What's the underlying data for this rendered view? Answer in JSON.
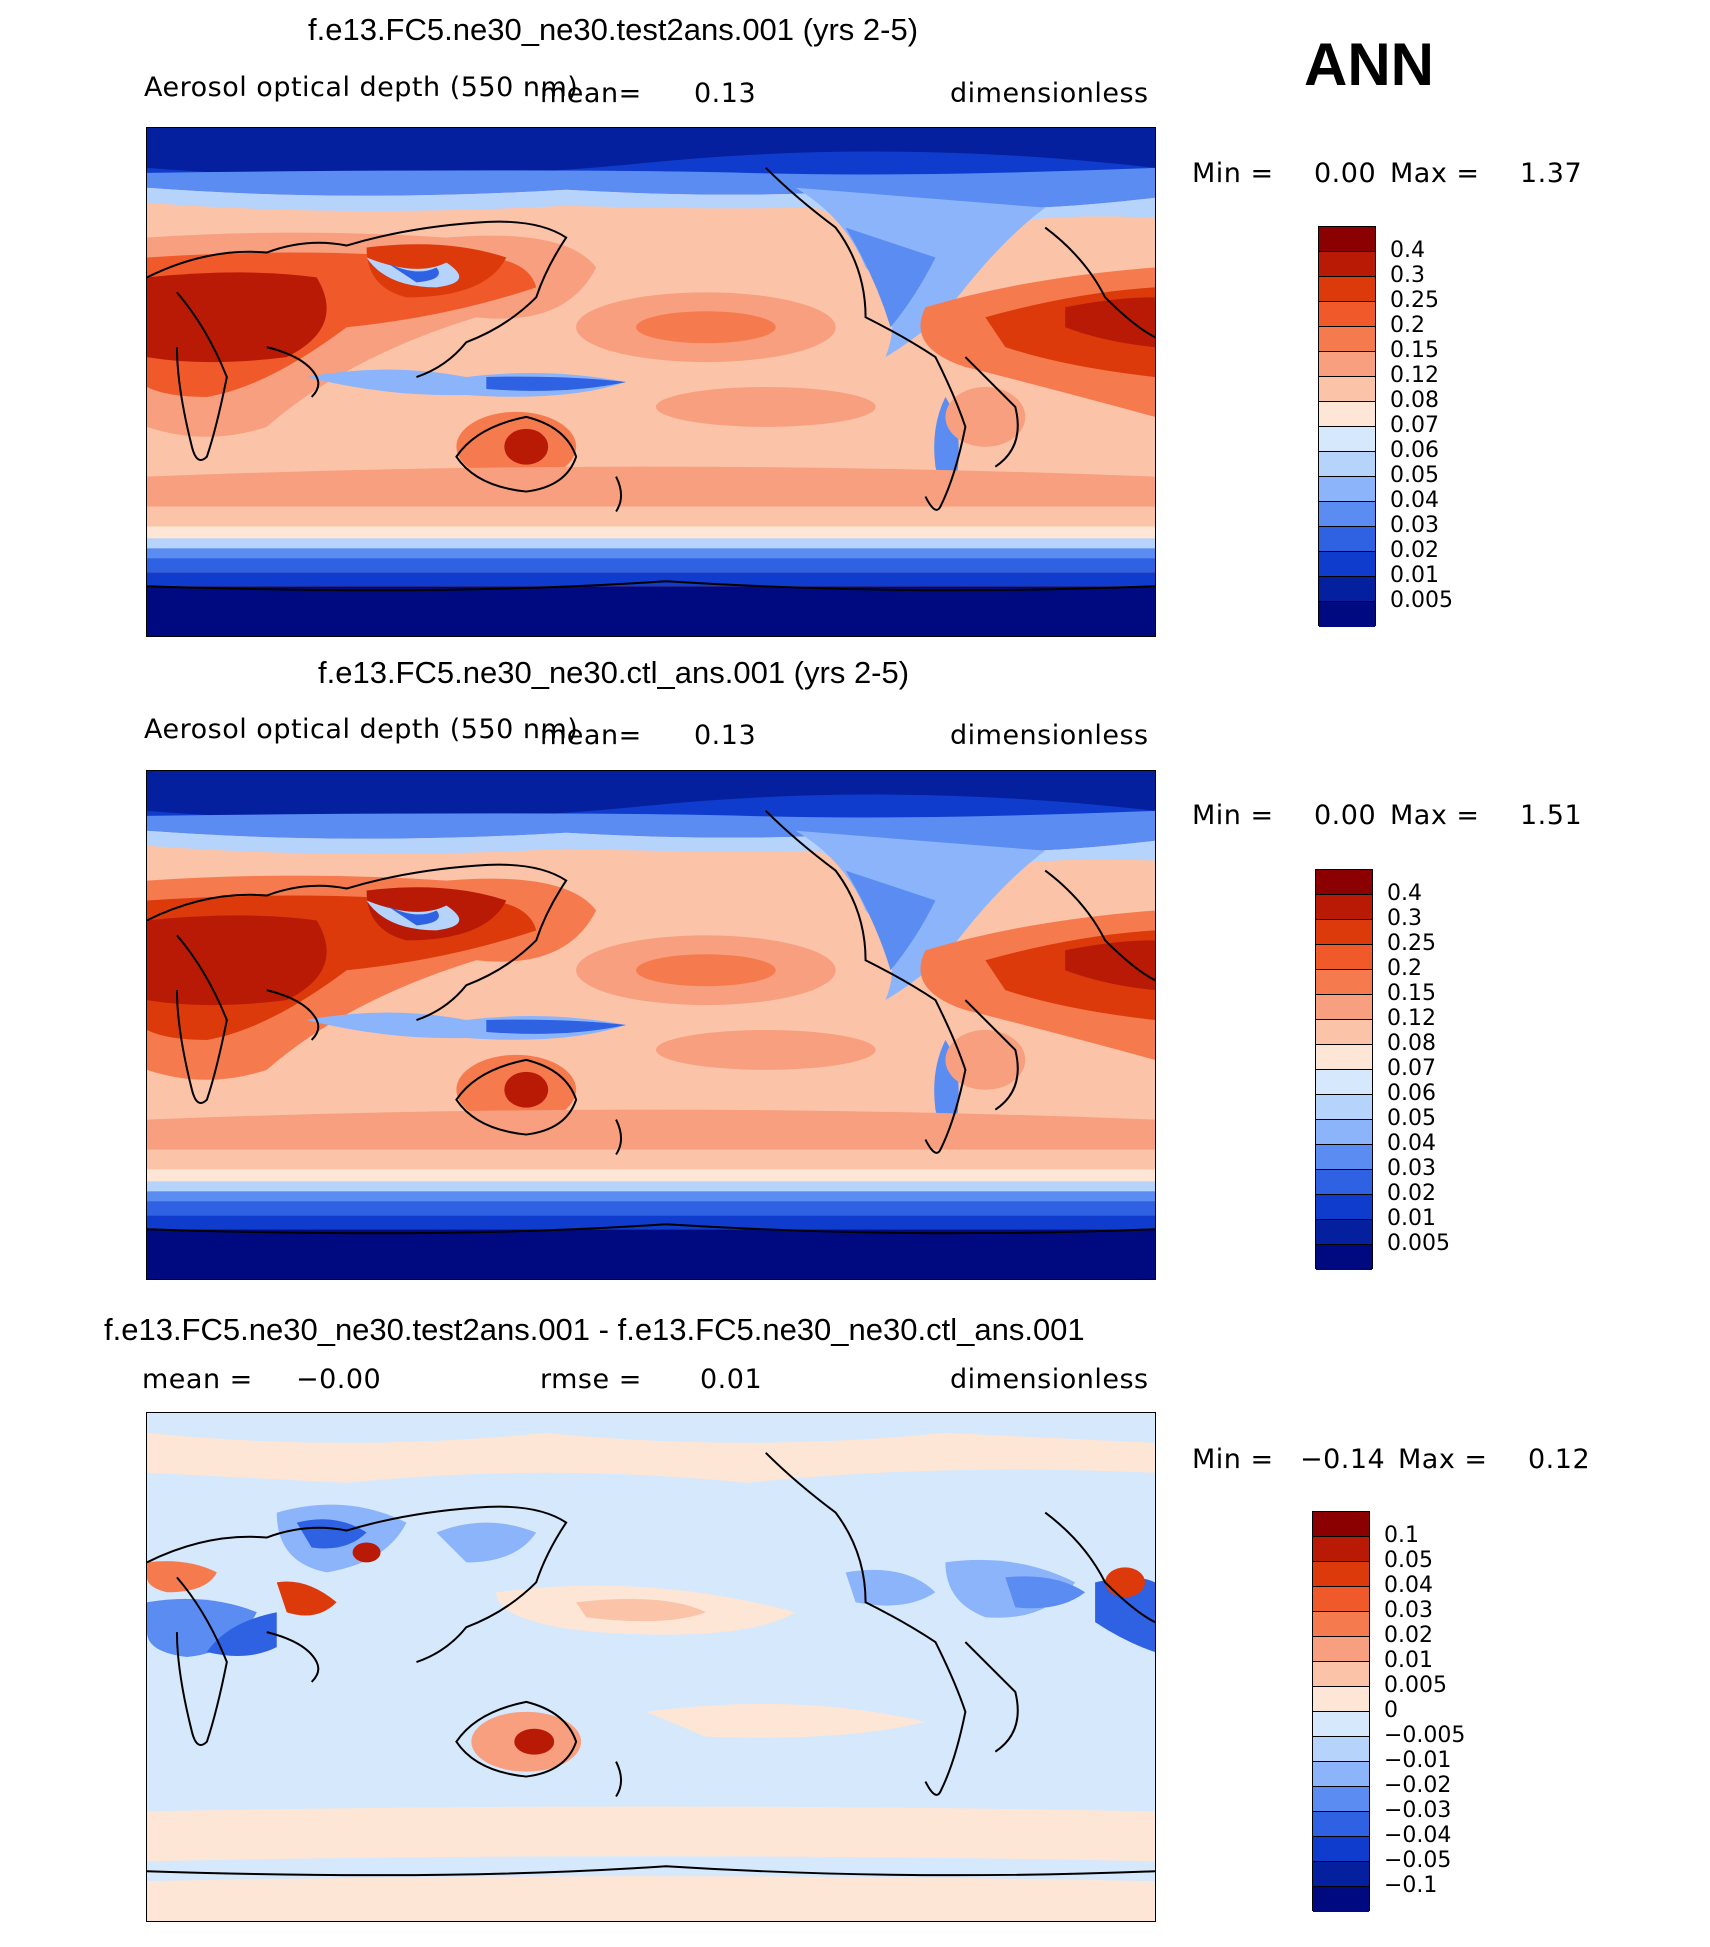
{
  "season": "ANN",
  "panels": [
    {
      "title": "f.e13.FC5.ne30_ne30.test2ans.001 (yrs 2-5)",
      "variable": "Aerosol optical depth (550 nm)",
      "mean_label": "mean=",
      "mean_value": "0.13",
      "units": "dimensionless",
      "min_label": "Min =",
      "min_value": "0.00",
      "max_label": "Max =",
      "max_value": "1.37",
      "colorbar_labels": [
        "0.4",
        "0.3",
        "0.25",
        "0.2",
        "0.15",
        "0.12",
        "0.08",
        "0.07",
        "0.06",
        "0.05",
        "0.04",
        "0.03",
        "0.02",
        "0.01",
        "0.005"
      ]
    },
    {
      "title": "f.e13.FC5.ne30_ne30.ctl_ans.001 (yrs 2-5)",
      "variable": "Aerosol optical depth (550 nm)",
      "mean_label": "mean=",
      "mean_value": "0.13",
      "units": "dimensionless",
      "min_label": "Min =",
      "min_value": "0.00",
      "max_label": "Max =",
      "max_value": "1.51",
      "colorbar_labels": [
        "0.4",
        "0.3",
        "0.25",
        "0.2",
        "0.15",
        "0.12",
        "0.08",
        "0.07",
        "0.06",
        "0.05",
        "0.04",
        "0.03",
        "0.02",
        "0.01",
        "0.005"
      ]
    },
    {
      "title": "f.e13.FC5.ne30_ne30.test2ans.001 - f.e13.FC5.ne30_ne30.ctl_ans.001",
      "mean_label": "mean =",
      "mean_value": "−0.00",
      "rmse_label": "rmse =",
      "rmse_value": "0.01",
      "units": "dimensionless",
      "min_label": "Min =",
      "min_value": "−0.14",
      "max_label": "Max =",
      "max_value": "0.12",
      "colorbar_labels": [
        "0.1",
        "0.05",
        "0.04",
        "0.03",
        "0.02",
        "0.01",
        "0.005",
        "0",
        "−0.005",
        "−0.01",
        "−0.02",
        "−0.03",
        "−0.04",
        "−0.05",
        "−0.1"
      ]
    }
  ],
  "colors": {
    "abs_scale": [
      "#8b0000",
      "#b81a05",
      "#dc3a0b",
      "#f0592a",
      "#f57b4f",
      "#f79f7e",
      "#fbc3a8",
      "#fde6d6",
      "#d6e8fb",
      "#b6d3fb",
      "#8cb4fa",
      "#5a8cf2",
      "#2f61e3",
      "#0f3ccc",
      "#05209e",
      "#000a80"
    ],
    "diff_scale": [
      "#8b0000",
      "#b81a05",
      "#dc3a0b",
      "#f0592a",
      "#f57b4f",
      "#f79f7e",
      "#fbc3a8",
      "#fde6d6",
      "#d6e8fb",
      "#b6d3fb",
      "#8cb4fa",
      "#5a8cf2",
      "#2f61e3",
      "#0f3ccc",
      "#05209e",
      "#000a80"
    ]
  }
}
